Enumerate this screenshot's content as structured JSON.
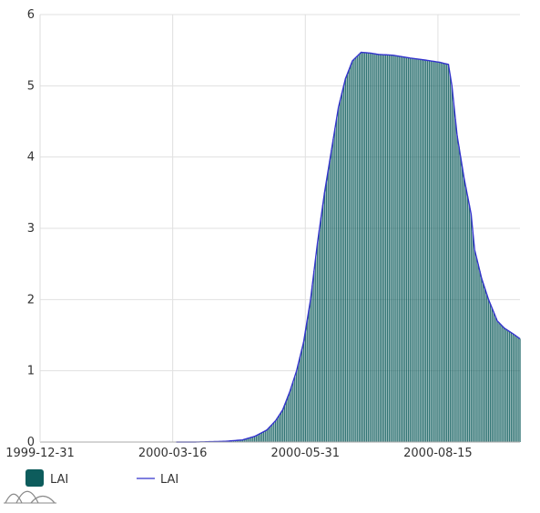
{
  "chart_data": {
    "type": "bar",
    "title": "",
    "xlabel": "",
    "ylabel": "",
    "ylim": [
      0,
      6
    ],
    "y_ticks": [
      "0",
      "1",
      "2",
      "3",
      "4",
      "5",
      "6"
    ],
    "x_range": [
      "1999-12-31",
      "2000-10-01"
    ],
    "x_ticks": [
      "1999-12-31",
      "2000-03-16",
      "2000-05-31",
      "2000-08-15"
    ],
    "grid": true,
    "legend_position": "bottom-left",
    "series": [
      {
        "name": "LAI",
        "kind": "bar",
        "color": "#0d5c5c"
      },
      {
        "name": "LAI",
        "kind": "line",
        "color": "#3333cc"
      }
    ],
    "profile": [
      [
        "2000-03-29",
        0.0
      ],
      [
        "2000-04-15",
        0.01
      ],
      [
        "2000-04-25",
        0.03
      ],
      [
        "2000-05-02",
        0.08
      ],
      [
        "2000-05-09",
        0.17
      ],
      [
        "2000-05-14",
        0.3
      ],
      [
        "2000-05-18",
        0.45
      ],
      [
        "2000-05-22",
        0.7
      ],
      [
        "2000-05-26",
        1.0
      ],
      [
        "2000-05-30",
        1.4
      ],
      [
        "2000-06-03",
        2.0
      ],
      [
        "2000-06-07",
        2.8
      ],
      [
        "2000-06-11",
        3.5
      ],
      [
        "2000-06-15",
        4.1
      ],
      [
        "2000-06-19",
        4.7
      ],
      [
        "2000-06-23",
        5.1
      ],
      [
        "2000-06-27",
        5.35
      ],
      [
        "2000-07-02",
        5.47
      ],
      [
        "2000-07-07",
        5.46
      ],
      [
        "2000-07-12",
        5.44
      ],
      [
        "2000-07-20",
        5.43
      ],
      [
        "2000-07-30",
        5.39
      ],
      [
        "2000-08-08",
        5.36
      ],
      [
        "2000-08-16",
        5.33
      ],
      [
        "2000-08-21",
        5.3
      ],
      [
        "2000-08-23",
        5.0
      ],
      [
        "2000-08-26",
        4.3
      ],
      [
        "2000-08-30",
        3.7
      ],
      [
        "2000-09-03",
        3.2
      ],
      [
        "2000-09-05",
        2.7
      ],
      [
        "2000-09-09",
        2.3
      ],
      [
        "2000-09-13",
        2.0
      ],
      [
        "2000-09-18",
        1.7
      ],
      [
        "2000-09-22",
        1.6
      ],
      [
        "2000-09-27",
        1.52
      ],
      [
        "2000-10-01",
        1.45
      ]
    ]
  },
  "legend": {
    "items": [
      {
        "label": "LAI",
        "kind": "bar-swatch",
        "color": "#0d5c5c"
      },
      {
        "label": "LAI",
        "kind": "line-swatch",
        "color": "#3333cc"
      }
    ],
    "logo_icon": "amcharts-logo-icon"
  }
}
